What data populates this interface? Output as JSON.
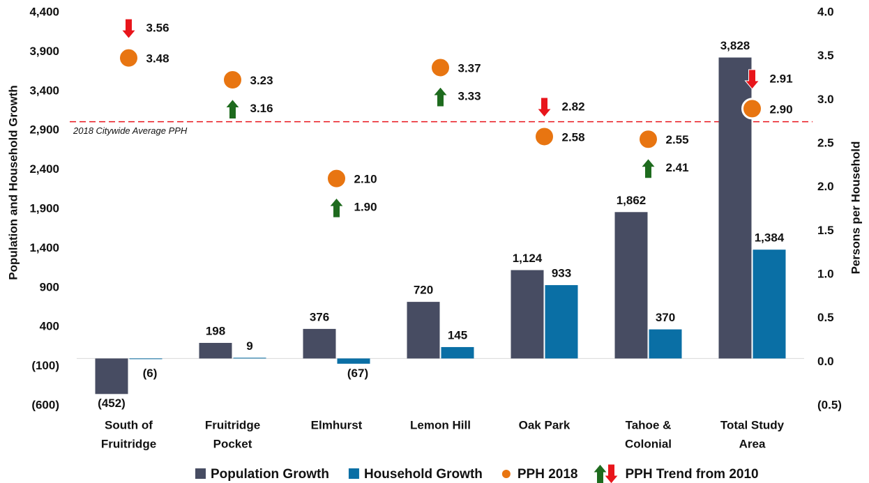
{
  "chart_data": {
    "type": "bar",
    "categories": [
      [
        "South of",
        "Fruitridge"
      ],
      [
        "Fruitridge",
        "Pocket"
      ],
      [
        "Elmhurst"
      ],
      [
        "Lemon Hill"
      ],
      [
        "Oak Park"
      ],
      [
        "Tahoe &",
        "Colonial"
      ],
      [
        "Total Study",
        "Area"
      ]
    ],
    "series": [
      {
        "name": "Population Growth",
        "color": "#474c62",
        "values": [
          -452,
          198,
          376,
          720,
          1124,
          1862,
          3828
        ],
        "value_labels": [
          "(452)",
          "198",
          "376",
          "720",
          "1,124",
          "1,862",
          "3,828"
        ]
      },
      {
        "name": "Household Growth",
        "color": "#0a6fa5",
        "values": [
          -6,
          9,
          -67,
          145,
          933,
          370,
          1384
        ],
        "value_labels": [
          "(6)",
          "9",
          "(67)",
          "145",
          "933",
          "370",
          "1,384"
        ]
      },
      {
        "name": "PPH 2018",
        "color": "#e87511",
        "axis": "y2",
        "type": "scatter",
        "values": [
          3.48,
          3.23,
          2.1,
          3.37,
          2.58,
          2.55,
          2.9
        ],
        "value_labels": [
          "3.48",
          "3.23",
          "2.10",
          "3.37",
          "2.58",
          "2.55",
          "2.90"
        ]
      },
      {
        "name": "PPH Trend from 2010",
        "color": "#1e6b1e",
        "down_color": "#e8151b",
        "axis": "y2",
        "type": "arrow",
        "values": [
          3.56,
          3.16,
          1.9,
          3.33,
          2.82,
          2.41,
          2.91
        ],
        "value_labels": [
          "3.56",
          "3.16",
          "1.90",
          "3.33",
          "2.82",
          "2.41",
          "2.91"
        ]
      }
    ],
    "ylabel": "Population and Household Growth",
    "y2label": "Persons per Household",
    "ylim": [
      -600,
      4400
    ],
    "yticks": [
      {
        "value": -600,
        "label": "(600)"
      },
      {
        "value": -100,
        "label": "(100)"
      },
      400,
      900,
      {
        "value": 1400,
        "label": "1,400"
      },
      {
        "value": 1900,
        "label": "1,900"
      },
      {
        "value": 2400,
        "label": "2,400"
      },
      {
        "value": 2900,
        "label": "2,900"
      },
      {
        "value": 3400,
        "label": "3,400"
      },
      {
        "value": 3900,
        "label": "3,900"
      },
      {
        "value": 4400,
        "label": "4,400"
      }
    ],
    "y2lim": [
      -0.5,
      4.0
    ],
    "y2ticks": [
      {
        "value": -0.5,
        "label": "(0.5)"
      },
      {
        "value": 0,
        "label": "0.0"
      },
      0.5,
      {
        "value": 1,
        "label": "1.0"
      },
      1.5,
      {
        "value": 2,
        "label": "2.0"
      },
      2.5,
      {
        "value": 3,
        "label": "3.0"
      },
      3.5,
      {
        "value": 4,
        "label": "4.0"
      }
    ],
    "reference_line": {
      "label": "2018 Citywide Average PPH",
      "value": 2.75,
      "axis": "y2",
      "color": "#e8151b"
    },
    "legend": "bottom"
  }
}
